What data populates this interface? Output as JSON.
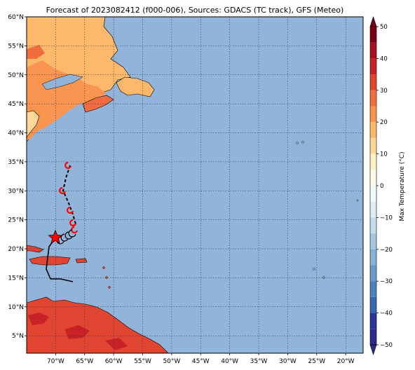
{
  "title": "Forecast of 2023082412 (f000-006), Sources: GDACS (TC track), GFS (Meteo)",
  "colors": {
    "ocean": "#92b4d8",
    "grid": "#1f2a55",
    "track": "#000000",
    "forecast_symbol": "#ff0000"
  },
  "lon_labels": [
    "70°W",
    "65°W",
    "60°W",
    "55°W",
    "50°W",
    "45°W",
    "40°W",
    "35°W",
    "30°W",
    "25°W",
    "20°W"
  ],
  "lat_labels": [
    "5°N",
    "10°N",
    "15°N",
    "20°N",
    "25°N",
    "30°N",
    "35°N",
    "40°N",
    "45°N",
    "50°N",
    "55°N",
    "60°N"
  ],
  "colorbar": {
    "label": "Max Temperature (°C)",
    "tick_labels": [
      "50",
      "40",
      "30",
      "20",
      "10",
      "0",
      "−10",
      "−20",
      "−30",
      "−40",
      "−50"
    ],
    "bins": [
      {
        "from": -50,
        "to": -45,
        "color": "#2c2c8c"
      },
      {
        "from": -45,
        "to": -40,
        "color": "#28359a"
      },
      {
        "from": -40,
        "to": -35,
        "color": "#3a68ad"
      },
      {
        "from": -35,
        "to": -30,
        "color": "#4d83bd"
      },
      {
        "from": -30,
        "to": -25,
        "color": "#6a9bcb"
      },
      {
        "from": -25,
        "to": -20,
        "color": "#86b2d8"
      },
      {
        "from": -20,
        "to": -15,
        "color": "#a3c7e3"
      },
      {
        "from": -15,
        "to": -10,
        "color": "#c2ddee"
      },
      {
        "from": -10,
        "to": -5,
        "color": "#dcedf5"
      },
      {
        "from": -5,
        "to": 0,
        "color": "#f0f8fb"
      },
      {
        "from": 0,
        "to": 5,
        "color": "#fffbe6"
      },
      {
        "from": 5,
        "to": 10,
        "color": "#fff0c2"
      },
      {
        "from": 10,
        "to": 15,
        "color": "#fed89a"
      },
      {
        "from": 15,
        "to": 20,
        "color": "#fdb86c"
      },
      {
        "from": 20,
        "to": 25,
        "color": "#f99551"
      },
      {
        "from": 25,
        "to": 30,
        "color": "#f16d3f"
      },
      {
        "from": 30,
        "to": 35,
        "color": "#e04531"
      },
      {
        "from": 35,
        "to": 40,
        "color": "#c82227"
      },
      {
        "from": 40,
        "to": 45,
        "color": "#a8101f"
      },
      {
        "from": 45,
        "to": 50,
        "color": "#7c0016"
      }
    ]
  }
}
